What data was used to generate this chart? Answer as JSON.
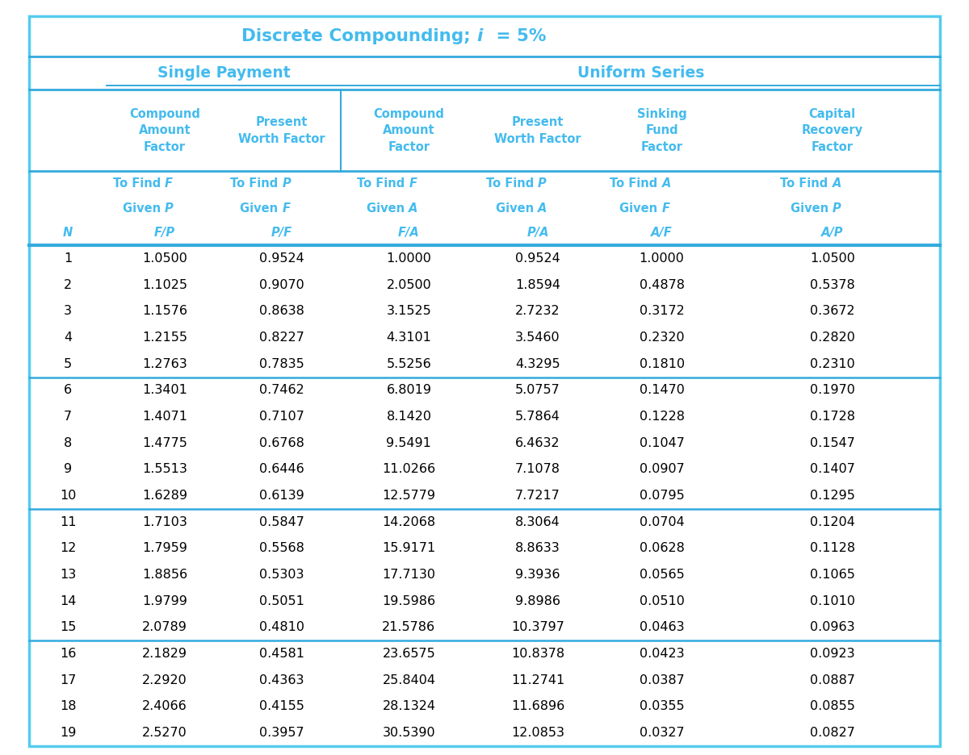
{
  "title_prefix": "Discrete Compounding; ",
  "title_i": "i",
  "title_suffix": " = 5%",
  "cyan": "#55CCEE",
  "dark_cyan": "#33AADD",
  "header_color": "#44BBEE",
  "bg_color": "#FFFFFF",
  "single_payment_label": "Single Payment",
  "uniform_series_label": "Uniform Series",
  "col_header_texts": [
    "Compound\nAmount\nFactor",
    "Present\nWorth Factor",
    "Compound\nAmount\nFactor",
    "Present\nWorth Factor",
    "Sinking\nFund\nFactor",
    "Capital\nRecovery\nFactor"
  ],
  "find_vars": [
    "F",
    "P",
    "F",
    "P",
    "A",
    "A"
  ],
  "given_vars": [
    "P",
    "F",
    "A",
    "A",
    "F",
    "P"
  ],
  "ratio_vars": [
    "F/P",
    "P/F",
    "F/A",
    "P/A",
    "A/F",
    "A/P"
  ],
  "data": [
    [
      1,
      "1.0500",
      "0.9524",
      "1.0000",
      "0.9524",
      "1.0000",
      "1.0500"
    ],
    [
      2,
      "1.1025",
      "0.9070",
      "2.0500",
      "1.8594",
      "0.4878",
      "0.5378"
    ],
    [
      3,
      "1.1576",
      "0.8638",
      "3.1525",
      "2.7232",
      "0.3172",
      "0.3672"
    ],
    [
      4,
      "1.2155",
      "0.8227",
      "4.3101",
      "3.5460",
      "0.2320",
      "0.2820"
    ],
    [
      5,
      "1.2763",
      "0.7835",
      "5.5256",
      "4.3295",
      "0.1810",
      "0.2310"
    ],
    [
      6,
      "1.3401",
      "0.7462",
      "6.8019",
      "5.0757",
      "0.1470",
      "0.1970"
    ],
    [
      7,
      "1.4071",
      "0.7107",
      "8.1420",
      "5.7864",
      "0.1228",
      "0.1728"
    ],
    [
      8,
      "1.4775",
      "0.6768",
      "9.5491",
      "6.4632",
      "0.1047",
      "0.1547"
    ],
    [
      9,
      "1.5513",
      "0.6446",
      "11.0266",
      "7.1078",
      "0.0907",
      "0.1407"
    ],
    [
      10,
      "1.6289",
      "0.6139",
      "12.5779",
      "7.7217",
      "0.0795",
      "0.1295"
    ],
    [
      11,
      "1.7103",
      "0.5847",
      "14.2068",
      "8.3064",
      "0.0704",
      "0.1204"
    ],
    [
      12,
      "1.7959",
      "0.5568",
      "15.9171",
      "8.8633",
      "0.0628",
      "0.1128"
    ],
    [
      13,
      "1.8856",
      "0.5303",
      "17.7130",
      "9.3936",
      "0.0565",
      "0.1065"
    ],
    [
      14,
      "1.9799",
      "0.5051",
      "19.5986",
      "9.8986",
      "0.0510",
      "0.1010"
    ],
    [
      15,
      "2.0789",
      "0.4810",
      "21.5786",
      "10.3797",
      "0.0463",
      "0.0963"
    ],
    [
      16,
      "2.1829",
      "0.4581",
      "23.6575",
      "10.8378",
      "0.0423",
      "0.0923"
    ],
    [
      17,
      "2.2920",
      "0.4363",
      "25.8404",
      "11.2741",
      "0.0387",
      "0.0887"
    ],
    [
      18,
      "2.4066",
      "0.4155",
      "28.1324",
      "11.6896",
      "0.0355",
      "0.0855"
    ],
    [
      19,
      "2.5270",
      "0.3957",
      "30.5390",
      "12.0853",
      "0.0327",
      "0.0827"
    ]
  ],
  "group_separators": [
    5,
    10,
    15
  ],
  "figsize": [
    12.0,
    9.36
  ],
  "dpi": 100
}
